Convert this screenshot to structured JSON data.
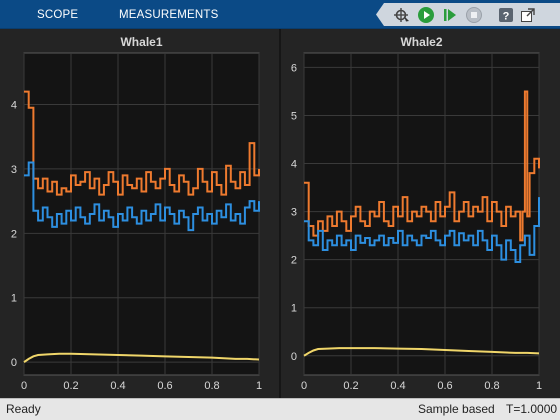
{
  "toolbar": {
    "tabs": [
      {
        "label": "SCOPE"
      },
      {
        "label": "MEASUREMENTS"
      }
    ],
    "buttons": [
      {
        "icon": "highlight-signal-icon"
      },
      {
        "icon": "run-icon"
      },
      {
        "icon": "step-forward-icon"
      },
      {
        "icon": "stop-icon"
      },
      {
        "icon": "help-icon"
      },
      {
        "icon": "undock-icon"
      }
    ],
    "accent": "#0b4a86"
  },
  "status": {
    "left": "Ready",
    "mode": "Sample based",
    "time": "T=1.0000"
  },
  "colors": {
    "axes_bg": "#141414",
    "grid": "#3a3a3a",
    "series_blue": "#2d8fe0",
    "series_orange": "#ee7a2f",
    "series_yellow": "#f0d66a"
  },
  "chart_data": [
    {
      "type": "line",
      "title": "Whale1",
      "xlabel": "",
      "ylabel": "",
      "xlim": [
        0,
        1
      ],
      "ylim": [
        -0.2,
        4.8
      ],
      "xticks": [
        "0",
        "0.2",
        "0.4",
        "0.6",
        "0.8",
        "1"
      ],
      "yticks": [
        "0",
        "1",
        "2",
        "3",
        "4"
      ],
      "grid": true,
      "series": [
        {
          "color_key": "series_orange",
          "step": true,
          "x": [
            0,
            0.02,
            0.04,
            0.06,
            0.08,
            0.1,
            0.12,
            0.14,
            0.16,
            0.18,
            0.2,
            0.22,
            0.24,
            0.26,
            0.28,
            0.3,
            0.32,
            0.34,
            0.36,
            0.38,
            0.4,
            0.42,
            0.44,
            0.46,
            0.48,
            0.5,
            0.52,
            0.54,
            0.56,
            0.58,
            0.6,
            0.62,
            0.64,
            0.66,
            0.68,
            0.7,
            0.72,
            0.74,
            0.76,
            0.78,
            0.8,
            0.82,
            0.84,
            0.86,
            0.88,
            0.9,
            0.92,
            0.94,
            0.96,
            0.98,
            1.0
          ],
          "y": [
            4.2,
            3.95,
            2.85,
            2.7,
            2.85,
            2.65,
            2.8,
            2.6,
            2.7,
            2.65,
            2.9,
            2.75,
            2.8,
            2.95,
            2.7,
            2.85,
            2.6,
            2.75,
            2.95,
            2.8,
            2.6,
            2.9,
            2.75,
            2.7,
            2.85,
            2.65,
            2.95,
            2.8,
            2.7,
            2.85,
            3.0,
            2.75,
            2.65,
            2.9,
            2.8,
            2.6,
            2.7,
            3.0,
            2.8,
            2.65,
            2.95,
            2.75,
            2.6,
            3.05,
            2.8,
            2.7,
            2.95,
            2.75,
            3.4,
            2.9,
            3.0
          ]
        },
        {
          "color_key": "series_blue",
          "step": true,
          "x": [
            0,
            0.02,
            0.04,
            0.06,
            0.08,
            0.1,
            0.12,
            0.14,
            0.16,
            0.18,
            0.2,
            0.22,
            0.24,
            0.26,
            0.28,
            0.3,
            0.32,
            0.34,
            0.36,
            0.38,
            0.4,
            0.42,
            0.44,
            0.46,
            0.48,
            0.5,
            0.52,
            0.54,
            0.56,
            0.58,
            0.6,
            0.62,
            0.64,
            0.66,
            0.68,
            0.7,
            0.72,
            0.74,
            0.76,
            0.78,
            0.8,
            0.82,
            0.84,
            0.86,
            0.88,
            0.9,
            0.92,
            0.94,
            0.96,
            0.98,
            1.0
          ],
          "y": [
            2.9,
            3.1,
            2.35,
            2.2,
            2.4,
            2.25,
            2.1,
            2.3,
            2.15,
            2.35,
            2.2,
            2.4,
            2.25,
            2.15,
            2.3,
            2.45,
            2.2,
            2.35,
            2.25,
            2.1,
            2.3,
            2.2,
            2.4,
            2.25,
            2.15,
            2.35,
            2.2,
            2.3,
            2.45,
            2.2,
            2.4,
            2.3,
            2.15,
            2.35,
            2.25,
            2.05,
            2.3,
            2.4,
            2.2,
            2.3,
            2.15,
            2.35,
            2.25,
            2.45,
            2.2,
            2.3,
            2.15,
            2.4,
            2.5,
            2.35,
            2.5
          ]
        },
        {
          "color_key": "series_yellow",
          "step": false,
          "x": [
            0,
            0.02,
            0.04,
            0.06,
            0.1,
            0.15,
            0.2,
            0.3,
            0.4,
            0.5,
            0.6,
            0.7,
            0.8,
            0.9,
            0.95,
            1.0
          ],
          "y": [
            0.0,
            0.05,
            0.09,
            0.11,
            0.12,
            0.13,
            0.13,
            0.12,
            0.11,
            0.1,
            0.09,
            0.08,
            0.07,
            0.05,
            0.05,
            0.04
          ]
        }
      ]
    },
    {
      "type": "line",
      "title": "Whale2",
      "xlabel": "",
      "ylabel": "",
      "xlim": [
        0,
        1
      ],
      "ylim": [
        -0.4,
        6.3
      ],
      "xticks": [
        "0",
        "0.2",
        "0.4",
        "0.6",
        "0.8",
        "1"
      ],
      "yticks": [
        "0",
        "1",
        "2",
        "3",
        "4",
        "5",
        "6"
      ],
      "grid": true,
      "series": [
        {
          "color_key": "series_orange",
          "step": true,
          "x": [
            0,
            0.02,
            0.04,
            0.06,
            0.08,
            0.1,
            0.12,
            0.14,
            0.16,
            0.18,
            0.2,
            0.22,
            0.24,
            0.26,
            0.28,
            0.3,
            0.32,
            0.34,
            0.36,
            0.38,
            0.4,
            0.42,
            0.44,
            0.46,
            0.48,
            0.5,
            0.52,
            0.54,
            0.56,
            0.58,
            0.6,
            0.62,
            0.64,
            0.66,
            0.68,
            0.7,
            0.72,
            0.74,
            0.76,
            0.78,
            0.8,
            0.82,
            0.84,
            0.86,
            0.88,
            0.9,
            0.92,
            0.93,
            0.94,
            0.95,
            0.96,
            0.98,
            1.0
          ],
          "y": [
            3.6,
            2.7,
            2.5,
            2.8,
            2.6,
            2.9,
            2.7,
            3.0,
            2.8,
            2.6,
            2.9,
            3.1,
            2.8,
            2.7,
            3.0,
            2.9,
            3.2,
            2.8,
            2.7,
            3.1,
            2.9,
            3.3,
            2.8,
            3.0,
            2.9,
            3.1,
            3.0,
            2.8,
            3.2,
            2.9,
            3.1,
            3.4,
            2.8,
            3.0,
            3.2,
            2.9,
            3.1,
            3.0,
            3.3,
            2.8,
            3.2,
            3.0,
            2.7,
            3.1,
            2.9,
            3.0,
            2.4,
            3.0,
            5.5,
            2.9,
            3.8,
            4.1,
            3.9
          ]
        },
        {
          "color_key": "series_blue",
          "step": true,
          "x": [
            0,
            0.02,
            0.04,
            0.06,
            0.08,
            0.1,
            0.12,
            0.14,
            0.16,
            0.18,
            0.2,
            0.22,
            0.24,
            0.26,
            0.28,
            0.3,
            0.32,
            0.34,
            0.36,
            0.38,
            0.4,
            0.42,
            0.44,
            0.46,
            0.48,
            0.5,
            0.52,
            0.54,
            0.56,
            0.58,
            0.6,
            0.62,
            0.64,
            0.66,
            0.68,
            0.7,
            0.72,
            0.74,
            0.76,
            0.78,
            0.8,
            0.82,
            0.84,
            0.86,
            0.88,
            0.9,
            0.92,
            0.94,
            0.96,
            0.98,
            1.0
          ],
          "y": [
            2.8,
            2.4,
            2.3,
            2.6,
            2.2,
            2.4,
            2.3,
            2.5,
            2.3,
            2.4,
            2.2,
            2.5,
            2.35,
            2.45,
            2.3,
            2.4,
            2.5,
            2.3,
            2.45,
            2.35,
            2.6,
            2.3,
            2.5,
            2.4,
            2.3,
            2.5,
            2.45,
            2.6,
            2.4,
            2.3,
            2.5,
            2.6,
            2.3,
            2.55,
            2.4,
            2.5,
            2.3,
            2.6,
            2.4,
            2.2,
            2.5,
            2.3,
            2.0,
            2.4,
            2.2,
            1.95,
            2.3,
            2.5,
            2.1,
            2.7,
            3.3
          ]
        },
        {
          "color_key": "series_yellow",
          "step": false,
          "x": [
            0,
            0.02,
            0.04,
            0.06,
            0.1,
            0.15,
            0.2,
            0.3,
            0.4,
            0.5,
            0.6,
            0.7,
            0.8,
            0.9,
            0.95,
            1.0
          ],
          "y": [
            0.0,
            0.06,
            0.11,
            0.14,
            0.15,
            0.16,
            0.16,
            0.16,
            0.15,
            0.14,
            0.12,
            0.1,
            0.08,
            0.06,
            0.06,
            0.05
          ]
        }
      ]
    }
  ]
}
